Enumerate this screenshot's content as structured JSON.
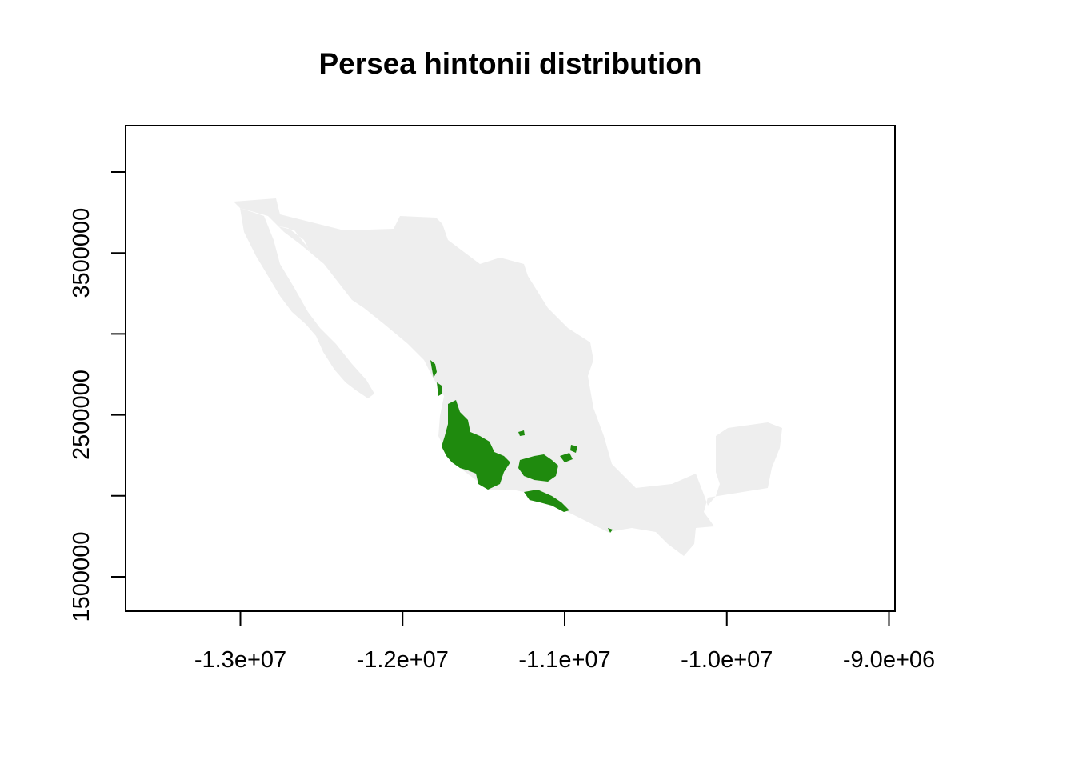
{
  "title": "Persea hintonii distribution",
  "colors": {
    "background": "#ffffff",
    "land": "#eeeeee",
    "distribution": "#1f8a0e",
    "axis": "#000000"
  },
  "chart_data": {
    "type": "map",
    "title": "Persea hintonii distribution",
    "xlim": [
      -13700000,
      -8950000
    ],
    "ylim": [
      1300000,
      4300000
    ],
    "x_ticks": [
      -13000000,
      -12000000,
      -11000000,
      -10000000,
      -9000000
    ],
    "x_tick_labels": [
      "-1.3e+07",
      "-1.2e+07",
      "-1.1e+07",
      "-1.0e+07",
      "-9.0e+06"
    ],
    "y_ticks": [
      1500000,
      2000000,
      2500000,
      3000000,
      3500000,
      4000000
    ],
    "y_tick_labels": [
      "1500000",
      "",
      "2500000",
      "",
      "3500000",
      ""
    ],
    "layers": [
      {
        "name": "Mexico",
        "role": "basemap",
        "color": "#eeeeee"
      },
      {
        "name": "Persea hintonii",
        "role": "presence",
        "color": "#1f8a0e"
      }
    ]
  }
}
